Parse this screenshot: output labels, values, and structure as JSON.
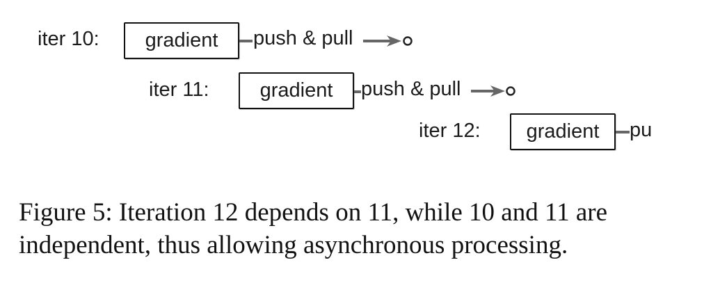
{
  "diagram": {
    "rows": [
      {
        "iter_label": "iter 10:",
        "box_label": "gradient",
        "op_label": "push & pull"
      },
      {
        "iter_label": "iter 11:",
        "box_label": "gradient",
        "op_label": "push & pull"
      },
      {
        "iter_label": "iter 12:",
        "box_label": "gradient",
        "op_label": "pu"
      }
    ],
    "colors": {
      "arrow": "#666666",
      "box_border": "#111111",
      "text": "#1a1a1a"
    }
  },
  "caption": {
    "line1": "Figure 5: Iteration 12 depends on 11, while 10 and 11 are",
    "line2": "independent, thus allowing asynchronous processing."
  }
}
